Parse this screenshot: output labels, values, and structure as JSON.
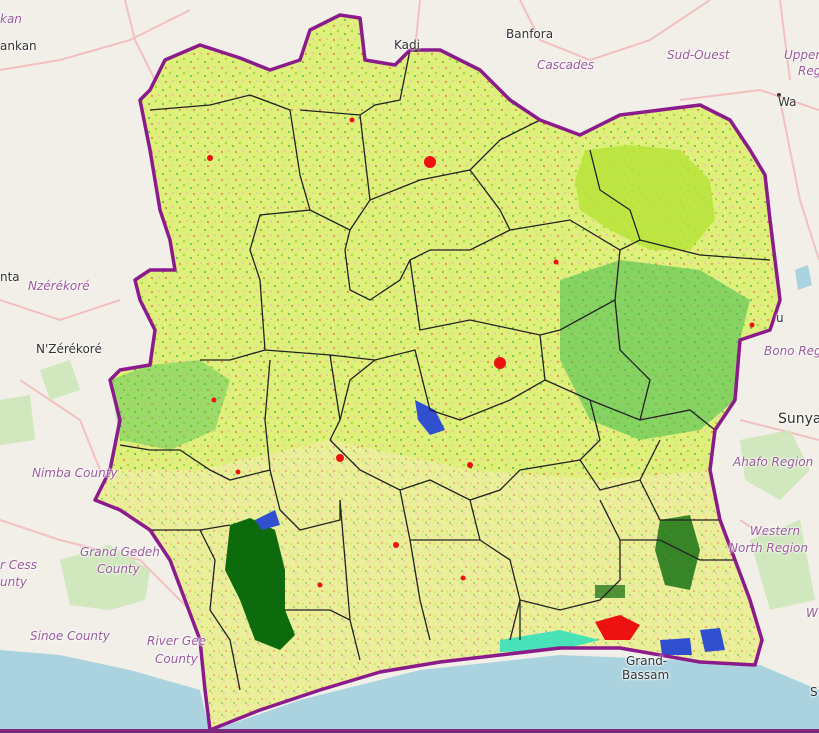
{
  "map": {
    "background_color": "#f2efe9",
    "sea_color": "#aad3df",
    "country_border_color": "#8b1a8b",
    "admin_line_color": "#222222",
    "labels": {
      "kankan": "ankan",
      "kan_partial": "kan",
      "kadiolo": "Kadi",
      "banfora": "Banfora",
      "cascades": "Cascades",
      "sud_ouest": "Sud-Ouest",
      "upper_region_line1": "Upper",
      "upper_region_line2": "Reg",
      "wa": "Wa",
      "nta": "nta",
      "nzerekore_region": "Nzérékoré",
      "nzerekore_city": "N'Zérékoré",
      "bono_region": "Bono Regi",
      "sunyani": "Sunya",
      "ahafo_region": "Ahafo Region",
      "nimba_county": "Nimba County",
      "western_north_line1": "Western",
      "western_north_line2": "North Region",
      "grand_gedeh_line1": "Grand Gedeh",
      "grand_gedeh_line2": "County",
      "river_cess_line1": "r Cess",
      "river_cess_line2": "unty",
      "sinoe_county": "Sinoe County",
      "river_gee_line1": "River Gee",
      "river_gee_line2": "County",
      "grand_bassam_line1": "Grand-",
      "grand_bassam_line2": "Bassam",
      "we_partial": "W",
      "s_partial": "S",
      "u_partial": "u"
    },
    "land_cover_legend_colors": {
      "cropland": "#eef08a",
      "grassland": "#c8ec5a",
      "shrubland": "#a8e040",
      "tree_cover": "#2ea83a",
      "dense_forest": "#0d6b0d",
      "built_up": "#ee1111",
      "herbaceous_wetland": "#f0a0e0",
      "water": "#3050d0",
      "mangroves": "#20e0c0"
    }
  }
}
